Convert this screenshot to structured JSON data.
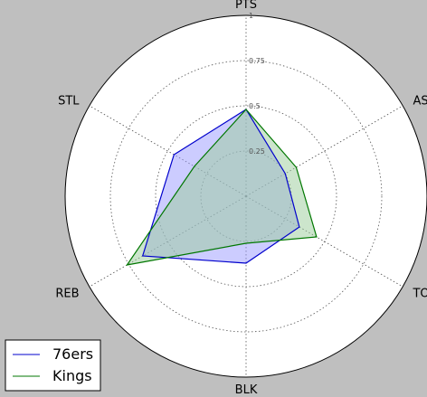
{
  "chart_data": {
    "type": "radar",
    "axes": [
      "PTS",
      "AST",
      "TOV",
      "BLK",
      "REB",
      "STL"
    ],
    "rlim": [
      0,
      1
    ],
    "rticks": [
      "0.25",
      "0.5",
      "0.75",
      "1"
    ],
    "grid": true,
    "legend_position": "bottom-left",
    "series": [
      {
        "name": "76ers",
        "values": [
          0.48,
          0.25,
          0.34,
          0.37,
          0.66,
          0.46
        ],
        "color": "#0000cc",
        "fill": "#9999ff"
      },
      {
        "name": "Kings",
        "values": [
          0.48,
          0.32,
          0.45,
          0.26,
          0.76,
          0.33
        ],
        "color": "#007700",
        "fill": "#99cc99"
      }
    ]
  }
}
